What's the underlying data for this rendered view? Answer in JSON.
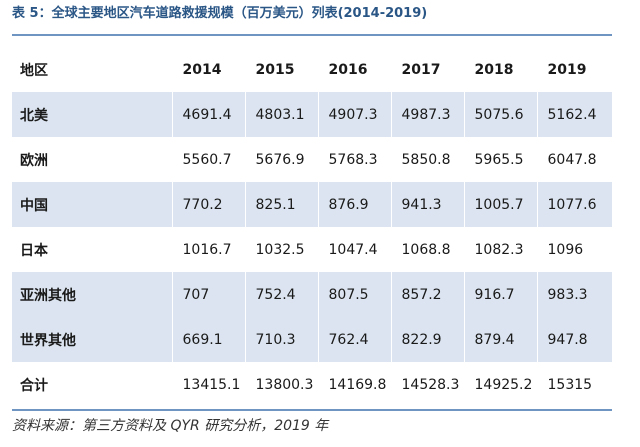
{
  "title": "表 5：全球主要地区汽车道路救援规模（百万美元）列表(2014-2019)",
  "table": {
    "headers": [
      "地区",
      "2014",
      "2015",
      "2016",
      "2017",
      "2018",
      "2019"
    ],
    "rows": [
      [
        "北美",
        "4691.4",
        "4803.1",
        "4907.3",
        "4987.3",
        "5075.6",
        "5162.4"
      ],
      [
        "欧洲",
        "5560.7",
        "5676.9",
        "5768.3",
        "5850.8",
        "5965.5",
        "6047.8"
      ],
      [
        "中国",
        "770.2",
        "825.1",
        "876.9",
        "941.3",
        "1005.7",
        "1077.6"
      ],
      [
        "日本",
        "1016.7",
        "1032.5",
        "1047.4",
        "1068.8",
        "1082.3",
        "1096"
      ],
      [
        "亚洲其他",
        "707",
        "752.4",
        "807.5",
        "857.2",
        "916.7",
        "983.3"
      ],
      [
        "世界其他",
        "669.1",
        "710.3",
        "762.4",
        "822.9",
        "879.4",
        "947.8"
      ],
      [
        "合计",
        "13415.1",
        "13800.3",
        "14169.8",
        "14528.3",
        "14925.2",
        "15315"
      ]
    ]
  },
  "source": "资料来源：第三方资料及 QYR 研究分析，2019 年",
  "colors": {
    "title": "#2a5686",
    "rule": "#6f96c3",
    "band": "#dbe4f0"
  }
}
